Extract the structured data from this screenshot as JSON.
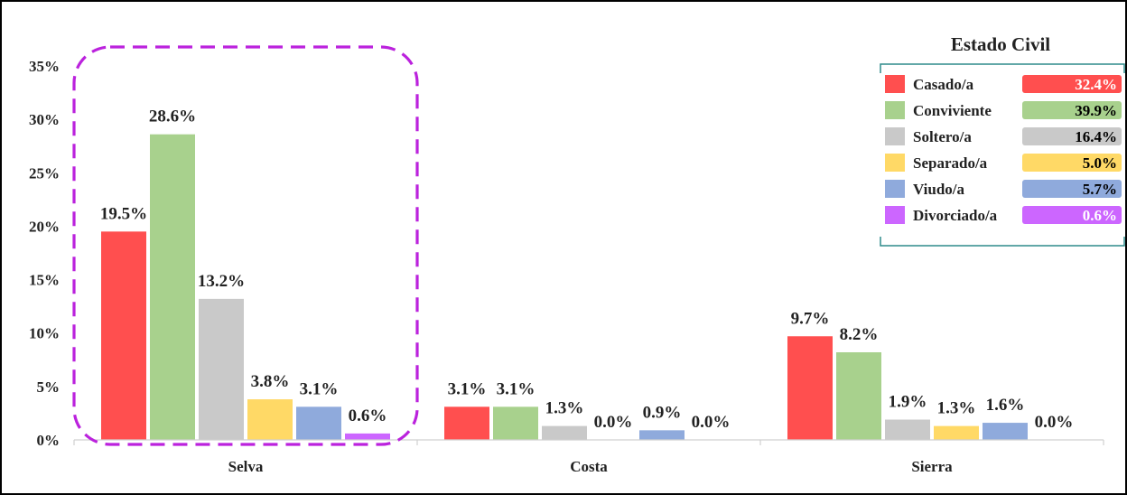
{
  "chart_data": {
    "type": "bar",
    "categories": [
      "Selva",
      "Costa",
      "Sierra"
    ],
    "series": [
      {
        "name": "Casado/a",
        "color": "#FF4F4F",
        "values": [
          19.5,
          3.1,
          9.7
        ],
        "labels": [
          "19.5%",
          "3.1%",
          "9.7%"
        ]
      },
      {
        "name": "Conviviente",
        "color": "#A8D18D",
        "values": [
          28.6,
          3.1,
          8.2
        ],
        "labels": [
          "28.6%",
          "3.1%",
          "8.2%"
        ]
      },
      {
        "name": "Soltero/a",
        "color": "#C9C9C9",
        "values": [
          13.2,
          1.3,
          1.9
        ],
        "labels": [
          "13.2%",
          "1.3%",
          "1.9%"
        ]
      },
      {
        "name": "Separado/a",
        "color": "#FFD966",
        "values": [
          3.8,
          0.0,
          1.3
        ],
        "labels": [
          "3.8%",
          "0.0%",
          "1.3%"
        ]
      },
      {
        "name": "Viudo/a",
        "color": "#8FAADC",
        "values": [
          3.1,
          0.9,
          1.6
        ],
        "labels": [
          "3.1%",
          "0.9%",
          "1.6%"
        ]
      },
      {
        "name": "Divorciado/a",
        "color": "#CC66FF",
        "values": [
          0.6,
          0.0,
          0.0
        ],
        "labels": [
          "0.6%",
          "0.0%",
          "0.0%"
        ]
      }
    ],
    "yticks": [
      "0%",
      "5%",
      "10%",
      "15%",
      "20%",
      "25%",
      "30%",
      "35%"
    ],
    "ylim": [
      0,
      35
    ],
    "grid": false,
    "legend": {
      "title": "Estado Civil",
      "placement": "top-right",
      "totals": [
        {
          "label": "32.4%",
          "bg": "#FF4F4F",
          "fg": "#ffffff"
        },
        {
          "label": "39.9%",
          "bg": "#A8D18D",
          "fg": "#000000"
        },
        {
          "label": "16.4%",
          "bg": "#C9C9C9",
          "fg": "#000000"
        },
        {
          "label": "5.0%",
          "bg": "#FFD966",
          "fg": "#000000"
        },
        {
          "label": "5.7%",
          "bg": "#8FAADC",
          "fg": "#000000"
        },
        {
          "label": "0.6%",
          "bg": "#CC66FF",
          "fg": "#ffffff"
        }
      ]
    },
    "highlight": {
      "category": "Selva",
      "style": "dashed",
      "color": "#BB22DD"
    }
  }
}
